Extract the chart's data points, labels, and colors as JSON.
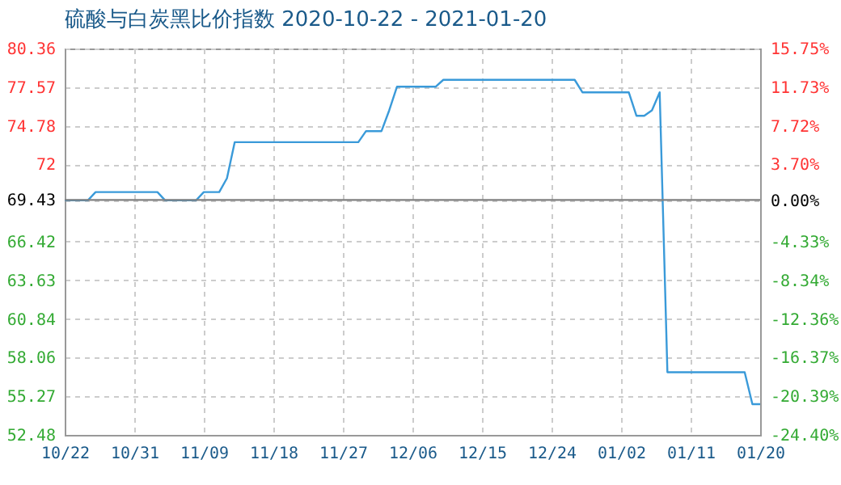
{
  "chart_data": {
    "type": "line",
    "title": "硫酸与白炭黑比价指数 2020-10-22 - 2021-01-20",
    "x": [
      "2020-10-22",
      "2020-10-25",
      "2020-10-26",
      "2020-11-03",
      "2020-11-04",
      "2020-11-08",
      "2020-11-09",
      "2020-11-11",
      "2020-11-12",
      "2020-11-13",
      "2020-11-29",
      "2020-11-30",
      "2020-12-02",
      "2020-12-03",
      "2020-12-04",
      "2020-12-09",
      "2020-12-10",
      "2020-12-27",
      "2020-12-28",
      "2021-01-03",
      "2021-01-04",
      "2021-01-05",
      "2021-01-06",
      "2021-01-07",
      "2021-01-08",
      "2021-01-18",
      "2021-01-19",
      "2021-01-20"
    ],
    "series": [
      {
        "color": "#3a9ad9",
        "values": [
          69.4,
          69.4,
          70.0,
          70.0,
          69.4,
          69.4,
          70.0,
          70.0,
          71.0,
          73.6,
          73.6,
          74.4,
          74.4,
          75.9,
          77.6,
          77.6,
          78.1,
          78.1,
          77.2,
          77.2,
          75.5,
          75.5,
          75.9,
          77.2,
          57.0,
          57.0,
          54.7,
          54.7
        ]
      }
    ],
    "xlim": [
      "2020-10-22",
      "2021-01-20"
    ],
    "xticks": [
      {
        "value": "2020-10-22",
        "label": "10/22"
      },
      {
        "value": "2020-10-31",
        "label": "10/31"
      },
      {
        "value": "2020-11-09",
        "label": "11/09"
      },
      {
        "value": "2020-11-18",
        "label": "11/18"
      },
      {
        "value": "2020-11-27",
        "label": "11/27"
      },
      {
        "value": "2020-12-06",
        "label": "12/06"
      },
      {
        "value": "2020-12-15",
        "label": "12/15"
      },
      {
        "value": "2020-12-24",
        "label": "12/24"
      },
      {
        "value": "2021-01-02",
        "label": "01/02"
      },
      {
        "value": "2021-01-11",
        "label": "01/11"
      },
      {
        "value": "2021-01-20",
        "label": "01/20"
      }
    ],
    "ylim": [
      52.48,
      80.36
    ],
    "yticks": [
      52.48,
      55.27,
      58.06,
      60.84,
      63.63,
      66.42,
      69.43,
      72,
      74.78,
      77.57,
      80.36
    ],
    "y2lim": [
      -24.4,
      15.75
    ],
    "y2ticks": [
      {
        "value": -24.4,
        "label": "-24.40%"
      },
      {
        "value": -20.39,
        "label": "-20.39%"
      },
      {
        "value": -16.37,
        "label": "-16.37%"
      },
      {
        "value": -12.36,
        "label": "-12.36%"
      },
      {
        "value": -8.34,
        "label": "-8.34%"
      },
      {
        "value": -4.33,
        "label": "-4.33%"
      },
      {
        "value": 0,
        "label": "0.00%"
      },
      {
        "value": 3.7,
        "label": "3.70%"
      },
      {
        "value": 7.72,
        "label": "7.72%"
      },
      {
        "value": 11.73,
        "label": "11.73%"
      },
      {
        "value": 15.75,
        "label": "15.75%"
      }
    ],
    "ref_lines": [
      {
        "axis": "y",
        "value": 69.43,
        "color": "#808080"
      }
    ],
    "grid": true
  }
}
